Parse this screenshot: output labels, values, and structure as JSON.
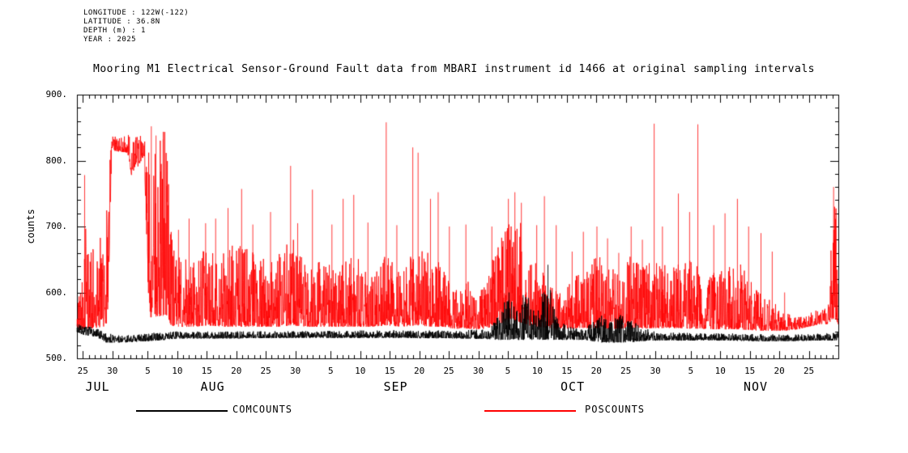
{
  "header": {
    "lines": [
      "LONGITUDE : 122W(-122)",
      "LATITUDE : 36.8N",
      "DEPTH (m) : 1",
      "YEAR : 2025"
    ]
  },
  "title": "Mooring M1 Electrical Sensor-Ground Fault data from MBARI instrument id 1466 at original sampling intervals",
  "chart_data": {
    "type": "line",
    "title": "Mooring M1 Electrical Sensor-Ground Fault data from MBARI instrument id 1466 at original sampling intervals",
    "xlabel": "",
    "ylabel": "counts",
    "ylim": [
      500,
      900
    ],
    "grid": false,
    "legend_position": "bottom",
    "y_ticks": [
      {
        "value": 500,
        "label": "500."
      },
      {
        "value": 600,
        "label": "600."
      },
      {
        "value": 700,
        "label": "700."
      },
      {
        "value": 800,
        "label": "800."
      },
      {
        "value": 900,
        "label": "900."
      }
    ],
    "y_minor_tick_every": 20,
    "x_axis": {
      "day0_date": "JUL 24",
      "day_max": 129,
      "minor_tick_every_days": 1,
      "major_ticks": [
        {
          "day": 1,
          "label": "25"
        },
        {
          "day": 6,
          "label": "30"
        },
        {
          "day": 12,
          "label": "5"
        },
        {
          "day": 17,
          "label": "10"
        },
        {
          "day": 22,
          "label": "15"
        },
        {
          "day": 27,
          "label": "20"
        },
        {
          "day": 32,
          "label": "25"
        },
        {
          "day": 37,
          "label": "30"
        },
        {
          "day": 43,
          "label": "5"
        },
        {
          "day": 48,
          "label": "10"
        },
        {
          "day": 53,
          "label": "15"
        },
        {
          "day": 58,
          "label": "20"
        },
        {
          "day": 63,
          "label": "25"
        },
        {
          "day": 68,
          "label": "30"
        },
        {
          "day": 73,
          "label": "5"
        },
        {
          "day": 78,
          "label": "10"
        },
        {
          "day": 83,
          "label": "15"
        },
        {
          "day": 88,
          "label": "20"
        },
        {
          "day": 93,
          "label": "25"
        },
        {
          "day": 98,
          "label": "30"
        },
        {
          "day": 104,
          "label": "5"
        },
        {
          "day": 109,
          "label": "10"
        },
        {
          "day": 114,
          "label": "15"
        },
        {
          "day": 119,
          "label": "20"
        },
        {
          "day": 124,
          "label": "25"
        }
      ],
      "month_labels": [
        {
          "day": 3.5,
          "label": "JUL"
        },
        {
          "day": 23,
          "label": "AUG"
        },
        {
          "day": 54,
          "label": "SEP"
        },
        {
          "day": 84,
          "label": "OCT"
        },
        {
          "day": 115,
          "label": "NOV"
        }
      ]
    },
    "series": [
      {
        "name": "POSCOUNTS",
        "color": "#ff0000",
        "representation": "noisy envelope [day, low, high], values estimated from plot",
        "envelope": [
          [
            0,
            542,
            585
          ],
          [
            0.8,
            544,
            640
          ],
          [
            1.5,
            545,
            700
          ],
          [
            3,
            546,
            660
          ],
          [
            4.5,
            548,
            700
          ],
          [
            5.2,
            555,
            765
          ],
          [
            5.9,
            815,
            838
          ],
          [
            8.6,
            812,
            840
          ],
          [
            9.3,
            775,
            835
          ],
          [
            11.4,
            808,
            842
          ],
          [
            12.2,
            562,
            848
          ],
          [
            15.2,
            565,
            845
          ],
          [
            15.8,
            550,
            700
          ],
          [
            17,
            548,
            660
          ],
          [
            20,
            548,
            645
          ],
          [
            22,
            550,
            670
          ],
          [
            25,
            548,
            660
          ],
          [
            28,
            548,
            685
          ],
          [
            31,
            548,
            650
          ],
          [
            34,
            548,
            665
          ],
          [
            36.5,
            550,
            690
          ],
          [
            39,
            548,
            635
          ],
          [
            41,
            548,
            650
          ],
          [
            44,
            548,
            640
          ],
          [
            47,
            548,
            660
          ],
          [
            50,
            548,
            625
          ],
          [
            52.5,
            550,
            660
          ],
          [
            55,
            548,
            635
          ],
          [
            57.5,
            550,
            680
          ],
          [
            60,
            548,
            660
          ],
          [
            62,
            548,
            640
          ],
          [
            64,
            545,
            605
          ],
          [
            66,
            545,
            620
          ],
          [
            68,
            544,
            600
          ],
          [
            70,
            546,
            640
          ],
          [
            72.5,
            555,
            700
          ],
          [
            75,
            555,
            715
          ],
          [
            76.5,
            550,
            655
          ],
          [
            78,
            548,
            645
          ],
          [
            80,
            546,
            620
          ],
          [
            82,
            545,
            600
          ],
          [
            84,
            545,
            620
          ],
          [
            86,
            546,
            650
          ],
          [
            88,
            546,
            660
          ],
          [
            90,
            545,
            640
          ],
          [
            92,
            545,
            630
          ],
          [
            94,
            546,
            660
          ],
          [
            96,
            545,
            640
          ],
          [
            98,
            546,
            650
          ],
          [
            100,
            546,
            645
          ],
          [
            102,
            546,
            660
          ],
          [
            104,
            545,
            650
          ],
          [
            106,
            545,
            640
          ],
          [
            108,
            544,
            630
          ],
          [
            110,
            544,
            640
          ],
          [
            112,
            544,
            650
          ],
          [
            114,
            543,
            620
          ],
          [
            116,
            542,
            600
          ],
          [
            118,
            542,
            585
          ],
          [
            120,
            542,
            570
          ],
          [
            122,
            544,
            562
          ],
          [
            124,
            548,
            568
          ],
          [
            126,
            552,
            576
          ],
          [
            127.4,
            552,
            582
          ],
          [
            127.9,
            558,
            700
          ],
          [
            128.3,
            560,
            752
          ],
          [
            128.7,
            555,
            720
          ],
          [
            129,
            550,
            640
          ]
        ],
        "spikes": [
          [
            1.3,
            778
          ],
          [
            12.6,
            852
          ],
          [
            13.4,
            838
          ],
          [
            14.6,
            832
          ],
          [
            17.2,
            695
          ],
          [
            19,
            712
          ],
          [
            21.8,
            705
          ],
          [
            23.5,
            712
          ],
          [
            25.6,
            728
          ],
          [
            27.9,
            757
          ],
          [
            29.8,
            703
          ],
          [
            32.8,
            722
          ],
          [
            36.2,
            792
          ],
          [
            37.4,
            705
          ],
          [
            39.9,
            756
          ],
          [
            43.2,
            703
          ],
          [
            45.1,
            742
          ],
          [
            46.9,
            748
          ],
          [
            49.3,
            706
          ],
          [
            52.4,
            858
          ],
          [
            54.2,
            702
          ],
          [
            56.9,
            820
          ],
          [
            57.8,
            812
          ],
          [
            59.9,
            742
          ],
          [
            61.2,
            752
          ],
          [
            63.1,
            700
          ],
          [
            65.9,
            703
          ],
          [
            70.3,
            700
          ],
          [
            73.1,
            742
          ],
          [
            74.2,
            752
          ],
          [
            75.3,
            736
          ],
          [
            77.9,
            702
          ],
          [
            79.2,
            746
          ],
          [
            81.2,
            702
          ],
          [
            83.9,
            662
          ],
          [
            85.8,
            692
          ],
          [
            88.1,
            700
          ],
          [
            89.9,
            682
          ],
          [
            91.8,
            660
          ],
          [
            93.9,
            700
          ],
          [
            95.8,
            680
          ],
          [
            97.8,
            856
          ],
          [
            99.2,
            700
          ],
          [
            101.9,
            750
          ],
          [
            103.8,
            722
          ],
          [
            105.2,
            855
          ],
          [
            107.9,
            702
          ],
          [
            109.8,
            720
          ],
          [
            111.9,
            742
          ],
          [
            113.8,
            700
          ],
          [
            115.9,
            690
          ],
          [
            117.8,
            662
          ],
          [
            119.9,
            600
          ],
          [
            128.2,
            760
          ]
        ]
      },
      {
        "name": "COMCOUNTS",
        "color": "#000000",
        "representation": "noisy envelope [day, low, high], values estimated from plot",
        "envelope": [
          [
            0,
            540,
            553
          ],
          [
            1,
            536,
            549
          ],
          [
            3,
            533,
            547
          ],
          [
            5,
            524,
            538
          ],
          [
            8,
            524,
            535
          ],
          [
            12,
            526,
            538
          ],
          [
            15,
            528,
            540
          ],
          [
            17,
            530,
            541
          ],
          [
            25,
            530,
            541
          ],
          [
            35,
            531,
            541
          ],
          [
            45,
            531,
            542
          ],
          [
            55,
            531,
            543
          ],
          [
            65,
            530,
            542
          ],
          [
            70,
            529,
            546
          ],
          [
            71.5,
            528,
            580
          ],
          [
            73,
            528,
            595
          ],
          [
            74.5,
            528,
            586
          ],
          [
            76,
            528,
            598
          ],
          [
            78,
            528,
            575
          ],
          [
            79.5,
            528,
            620
          ],
          [
            80.5,
            528,
            600
          ],
          [
            81.5,
            528,
            562
          ],
          [
            83,
            528,
            548
          ],
          [
            86,
            528,
            546
          ],
          [
            88,
            525,
            560
          ],
          [
            89,
            524,
            568
          ],
          [
            91,
            524,
            566
          ],
          [
            93,
            524,
            570
          ],
          [
            94.5,
            525,
            560
          ],
          [
            95.5,
            526,
            548
          ],
          [
            98,
            527,
            541
          ],
          [
            105,
            527,
            538
          ],
          [
            110,
            527,
            538
          ],
          [
            115,
            526,
            537
          ],
          [
            120,
            526,
            536
          ],
          [
            125,
            527,
            537
          ],
          [
            129,
            527,
            540
          ]
        ],
        "spikes": [
          [
            73.2,
            600
          ],
          [
            75.6,
            596
          ],
          [
            79.8,
            642
          ]
        ]
      }
    ],
    "legend": {
      "entries": [
        {
          "label": "COMCOUNTS",
          "color": "#000000"
        },
        {
          "label": "POSCOUNTS",
          "color": "#ff0000"
        }
      ]
    }
  }
}
